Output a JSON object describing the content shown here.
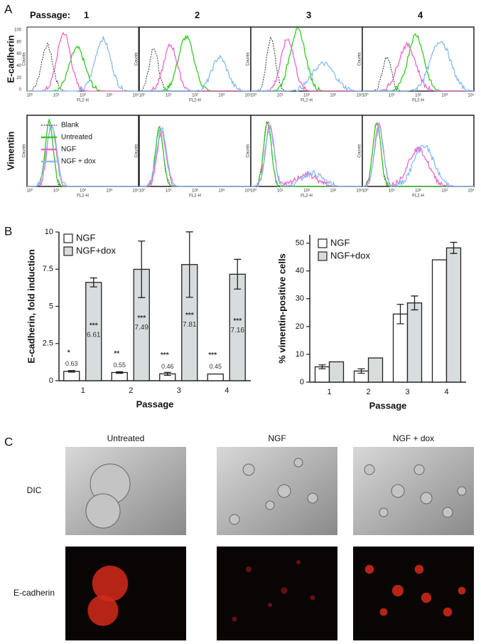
{
  "panel_a": {
    "label": "A",
    "passage_label": "Passage:",
    "passages": [
      "1",
      "2",
      "3",
      "4"
    ],
    "rows": [
      "E-cadherin",
      "Vimentin"
    ],
    "x_label": "FL2-H",
    "y_label": "Counts",
    "xticks": [
      "10⁰",
      "10¹",
      "10²",
      "10³",
      "10⁴"
    ],
    "yticks": [
      0,
      20,
      40,
      60,
      80,
      100
    ],
    "legend": [
      {
        "name": "Blank",
        "color": "#333333"
      },
      {
        "name": "Untreated",
        "color": "#33cc22"
      },
      {
        "name": "NGF",
        "color": "#ee66cc"
      },
      {
        "name": "NGF + dox",
        "color": "#88bbee"
      }
    ]
  },
  "panel_b": {
    "label": "B"
  },
  "chart_data": [
    {
      "type": "bar",
      "y_label": "E-cadherin, fold induction",
      "x_label": "Passage",
      "categories": [
        "1",
        "2",
        "3",
        "4"
      ],
      "ylim": [
        0,
        10
      ],
      "yticks": [
        0,
        2.5,
        5,
        7.5,
        10
      ],
      "legend": "upper left",
      "series": [
        {
          "name": "NGF",
          "color": "#ffffff",
          "values": [
            0.63,
            0.55,
            0.46,
            0.45
          ],
          "errors": [
            0.05,
            0.05,
            0.1,
            null
          ],
          "annotations": [
            "*",
            "**",
            "***",
            "***"
          ]
        },
        {
          "name": "NGF+dox",
          "color": "#d8dcdc",
          "values": [
            6.61,
            7.49,
            7.81,
            7.16
          ],
          "errors": [
            0.3,
            1.9,
            2.2,
            1.0
          ],
          "annotations": [
            "***",
            "***",
            "***",
            "***"
          ]
        }
      ]
    },
    {
      "type": "bar",
      "y_label": "% vimentin-positive cells",
      "x_label": "Passage",
      "categories": [
        "1",
        "2",
        "3",
        "4"
      ],
      "ylim": [
        0,
        53
      ],
      "yticks": [
        0,
        10,
        20,
        30,
        40,
        50
      ],
      "legend": "upper left",
      "series": [
        {
          "name": "NGF",
          "color": "#ffffff",
          "values": [
            5.5,
            4,
            24.5,
            44
          ],
          "errors": [
            0.7,
            0.8,
            3.5,
            null
          ]
        },
        {
          "name": "NGF+dox",
          "color": "#d8dcdc",
          "values": [
            7.3,
            8.7,
            28.5,
            48.3
          ],
          "errors": [
            null,
            null,
            2.5,
            2
          ]
        }
      ]
    }
  ],
  "panel_c": {
    "label": "C",
    "columns": [
      "Untreated",
      "NGF",
      "NGF + dox"
    ],
    "rows": [
      "DIC",
      "E-cadherin"
    ]
  }
}
